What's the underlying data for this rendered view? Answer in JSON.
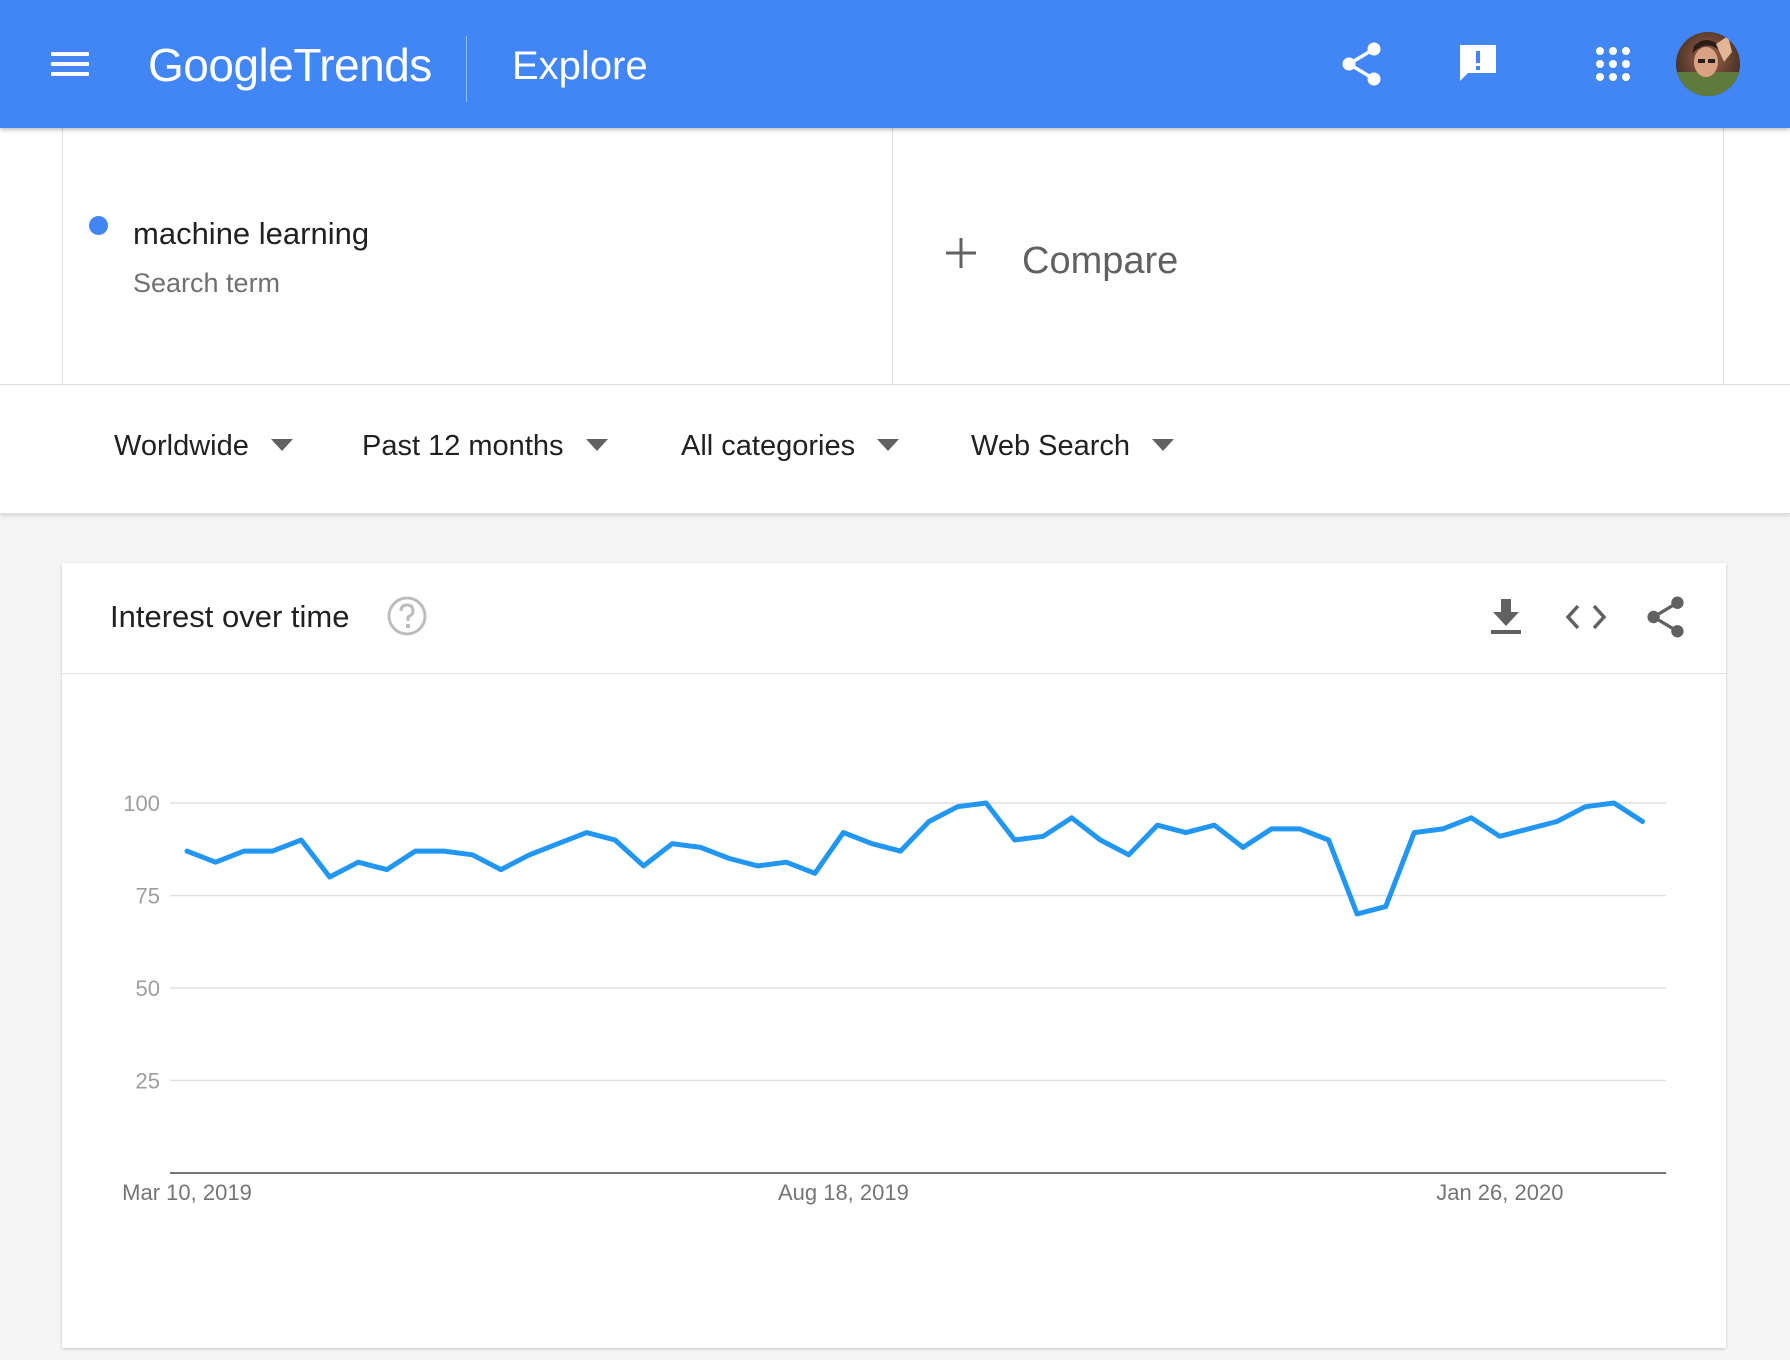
{
  "header": {
    "logo_google": "Google",
    "logo_trends": "Trends",
    "page": "Explore",
    "brand_color": "#4285f4",
    "icons": [
      "menu-icon",
      "share-icon",
      "feedback-icon",
      "apps-grid-icon",
      "account-avatar"
    ]
  },
  "search_term": {
    "name": "machine learning",
    "type": "Search term",
    "color": "#4285f4"
  },
  "compare": {
    "label": "Compare",
    "icon": "plus-icon"
  },
  "filters": [
    {
      "label": "Worldwide"
    },
    {
      "label": "Past 12 months"
    },
    {
      "label": "All categories"
    },
    {
      "label": "Web Search"
    }
  ],
  "card": {
    "title": "Interest over time",
    "icons": [
      "help-icon",
      "download-icon",
      "embed-code-icon",
      "share-icon"
    ]
  },
  "chart_data": {
    "type": "line",
    "title": "",
    "xlabel": "",
    "ylabel": "",
    "ylim": [
      0,
      100
    ],
    "yticks": [
      25,
      50,
      75,
      100
    ],
    "x_tick_labels": [
      "Mar 10, 2019",
      "Aug 18, 2019",
      "Jan 26, 2020"
    ],
    "grid": true,
    "line_color": "#2196f3",
    "series": [
      {
        "values": [
          87,
          84,
          87,
          87,
          90,
          80,
          84,
          82,
          87,
          87,
          86,
          82,
          86,
          89,
          92,
          90,
          83,
          89,
          88,
          85,
          83,
          84,
          81,
          92,
          89,
          87,
          95,
          99,
          100,
          90,
          91,
          96,
          90,
          86,
          94,
          92,
          94,
          88,
          93,
          93,
          90,
          70,
          72,
          92,
          93,
          96,
          91,
          93,
          95,
          99,
          100,
          95
        ]
      }
    ]
  }
}
